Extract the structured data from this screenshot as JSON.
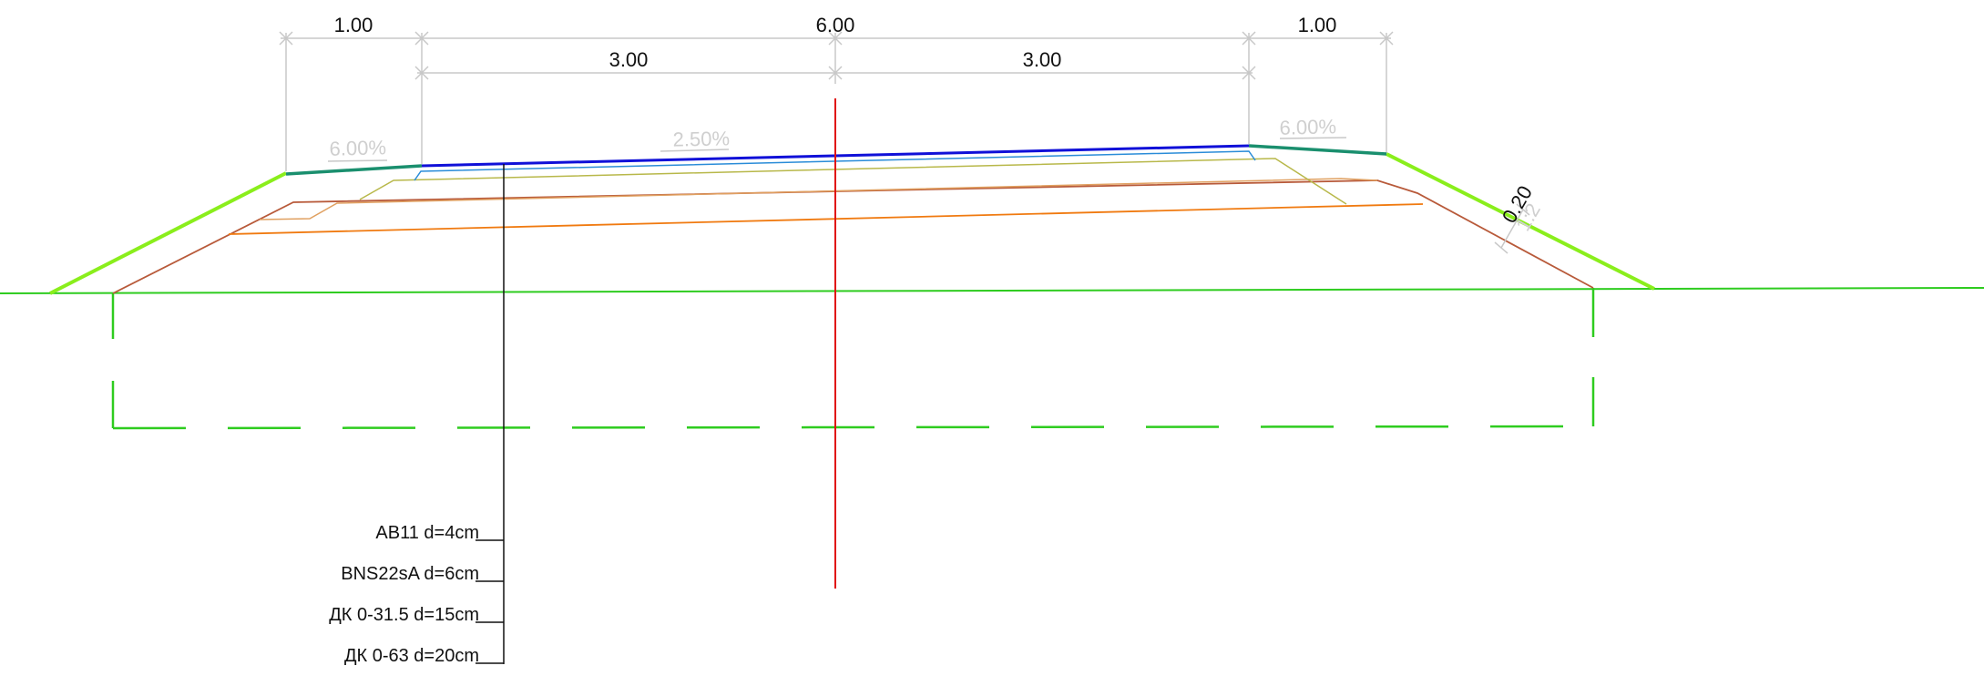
{
  "dimensions": {
    "total": "6.00",
    "left_shoulder": "1.00",
    "right_shoulder": "1.00",
    "left_lane": "3.00",
    "right_lane": "3.00",
    "side_slope_depth": "0.20",
    "side_slope_ratio": "1:2"
  },
  "slopes": {
    "left_shoulder": "6.00%",
    "carriageway": "2.50%",
    "right_shoulder": "6.00%"
  },
  "layers": [
    {
      "label": "AB11 d=4cm"
    },
    {
      "label": "BNS22sA d=6cm"
    },
    {
      "label": "ДК 0-31.5 d=15cm"
    },
    {
      "label": "ДК 0-63 d=20cm"
    }
  ],
  "colors": {
    "ground": "#2ecc1f",
    "embankment": "#8aee1c",
    "road_surface": "#1010d8",
    "shoulder": "#1a8f6e",
    "axis": "#e01010",
    "layer1": "#2a8cd8",
    "layer2": "#b8b84a",
    "layer3": "#e0a060",
    "layer4": "#f07a10",
    "layer5": "#b85a3a",
    "dimension_line": "#c8c8c8",
    "excavation": "#2ecc1f"
  }
}
